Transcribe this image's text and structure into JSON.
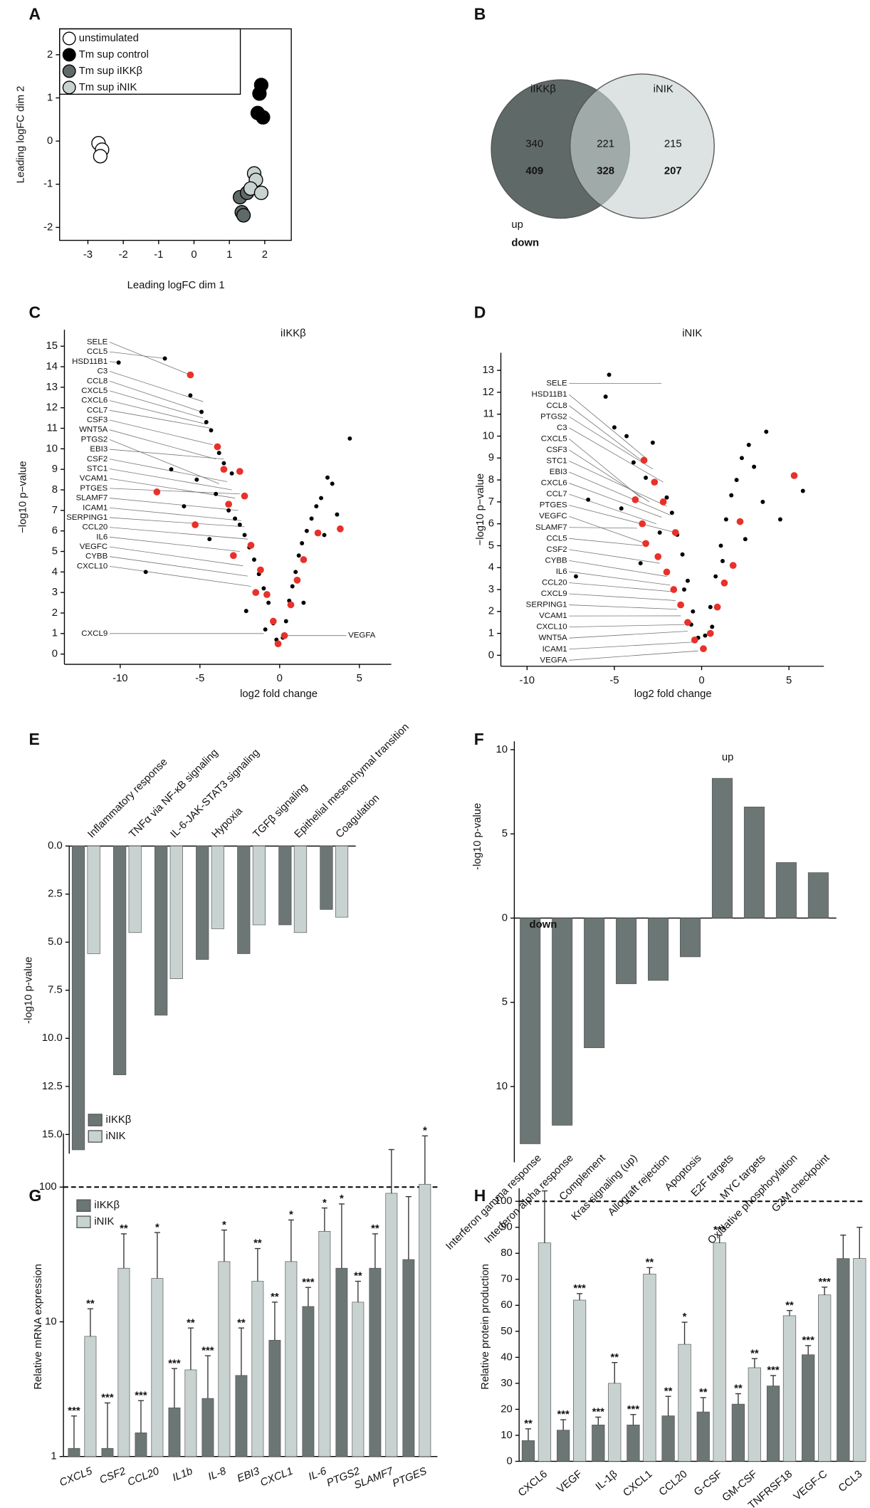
{
  "chart_data": [
    {
      "type": "scatter",
      "panel": "A",
      "xlabel": "Leading logFC dim 1",
      "ylabel": "Leading logFC dim 2",
      "xlim": [
        -3.8,
        2.75
      ],
      "ylim": [
        -2.3,
        2.6
      ],
      "xticks": [
        -3,
        -2,
        -1,
        0,
        1,
        2
      ],
      "yticks": [
        -2,
        -1,
        0,
        1,
        2
      ],
      "series": [
        {
          "name": "unstimulated",
          "color": "#ffffff",
          "x": [
            -2.7,
            -2.6,
            -2.65
          ],
          "values": [
            -0.05,
            -0.2,
            -0.35
          ]
        },
        {
          "name": "Tm sup control",
          "color": "#000000",
          "x": [
            1.9,
            1.85,
            1.8,
            1.95
          ],
          "values": [
            1.3,
            1.1,
            0.65,
            0.55
          ]
        },
        {
          "name": "Tm sup iIKKβ",
          "color": "#5f6968",
          "x": [
            1.3,
            1.5,
            1.35,
            1.4
          ],
          "values": [
            -1.3,
            -1.2,
            -1.65,
            -1.72
          ]
        },
        {
          "name": "Tm sup iNIK",
          "color": "#c8d2d0",
          "x": [
            1.7,
            1.75,
            1.6,
            1.9
          ],
          "values": [
            -0.75,
            -0.9,
            -1.1,
            -1.2
          ]
        }
      ]
    },
    {
      "type": "venn",
      "panel": "B",
      "sets": [
        "iIKKβ",
        "iNIK"
      ],
      "up": [
        340,
        221,
        215
      ],
      "down": [
        409,
        328,
        207
      ],
      "legend": [
        "up",
        "down"
      ],
      "colors": [
        "#5f6968",
        "#c8d2d0"
      ]
    },
    {
      "type": "scatter",
      "panel": "C",
      "title": "iIKKβ",
      "xlabel": "log2 fold change",
      "ylabel": "−log10 p−value",
      "xlim": [
        -13.5,
        7
      ],
      "ylim": [
        -0.5,
        15.8
      ],
      "xticks": [
        -10,
        -5,
        0,
        5
      ],
      "yticks": [
        0,
        1,
        2,
        3,
        4,
        5,
        6,
        7,
        8,
        9,
        10,
        11,
        12,
        13,
        14,
        15
      ],
      "series": [
        {
          "color": "#000000",
          "x": [
            -10.1,
            -7.2,
            -5.6,
            -4.9,
            -4.6,
            -4.3,
            -6.8,
            -3.8,
            -3.5,
            -3.0,
            -5.2,
            -4.0,
            -6.0,
            -3.2,
            -2.8,
            -2.5,
            -2.2,
            -4.4,
            -1.9,
            -1.6,
            -1.3,
            -1.0,
            -0.7,
            -0.4,
            -0.2,
            0.2,
            0.4,
            0.6,
            0.8,
            1.0,
            1.2,
            1.4,
            1.7,
            2.0,
            2.3,
            2.6,
            3.0,
            3.3,
            3.6,
            4.4,
            2.8,
            1.5,
            -8.4,
            -2.1,
            -0.9
          ],
          "values": [
            14.2,
            14.4,
            12.6,
            11.8,
            11.3,
            10.9,
            9.0,
            9.8,
            9.3,
            8.8,
            8.5,
            7.8,
            7.2,
            7.0,
            6.6,
            6.3,
            5.8,
            5.6,
            5.2,
            4.6,
            3.9,
            3.2,
            2.5,
            1.5,
            0.7,
            0.8,
            1.6,
            2.6,
            3.3,
            4.0,
            4.8,
            5.4,
            6.0,
            6.6,
            7.2,
            7.6,
            8.6,
            8.3,
            6.8,
            10.5,
            5.8,
            2.5,
            4.0,
            2.1,
            1.2
          ]
        },
        {
          "color": "#e8312a",
          "x": [
            -5.6,
            -7.7,
            -3.9,
            -3.5,
            -2.5,
            -2.2,
            -3.2,
            -5.3,
            -1.8,
            -1.2,
            -0.8,
            -0.4,
            -0.1,
            0.3,
            0.7,
            1.1,
            1.5,
            2.4,
            3.8,
            -2.9,
            -1.5
          ],
          "values": [
            13.6,
            7.9,
            10.1,
            9.0,
            8.9,
            7.7,
            7.3,
            6.3,
            5.3,
            4.1,
            2.9,
            1.6,
            0.5,
            0.9,
            2.4,
            3.6,
            4.6,
            5.9,
            6.1,
            4.8,
            3.0
          ]
        }
      ],
      "annotations": [
        {
          "text": "SELE",
          "x": -5.6,
          "y": 13.6
        },
        {
          "text": "CCL5",
          "x": -7.2,
          "y": 14.4
        },
        {
          "text": "HSD11B1",
          "x": -10.1,
          "y": 14.2
        },
        {
          "text": "C3",
          "x": -4.8,
          "y": 12.3
        },
        {
          "text": "CCL8",
          "x": -4.9,
          "y": 11.8
        },
        {
          "text": "CXCL5",
          "x": -4.8,
          "y": 11.5
        },
        {
          "text": "CXCL6",
          "x": -4.6,
          "y": 11.2
        },
        {
          "text": "CCL7",
          "x": -4.3,
          "y": 11.0
        },
        {
          "text": "CSF3",
          "x": -4.2,
          "y": 10.2
        },
        {
          "text": "WNT5A",
          "x": -4.0,
          "y": 9.5
        },
        {
          "text": "PTGS2",
          "x": -3.8,
          "y": 8.3
        },
        {
          "text": "EBI3",
          "x": -3.5,
          "y": 9.5
        },
        {
          "text": "CSF2",
          "x": -3.3,
          "y": 8.4
        },
        {
          "text": "STC1",
          "x": -3.0,
          "y": 8.0
        },
        {
          "text": "VCAM1",
          "x": -2.8,
          "y": 7.6
        },
        {
          "text": "PTGES",
          "x": -2.5,
          "y": 7.8
        },
        {
          "text": "SLAMF7",
          "x": -2.6,
          "y": 7.0
        },
        {
          "text": "ICAM1",
          "x": -2.4,
          "y": 6.5
        },
        {
          "text": "SERPING1",
          "x": -2.2,
          "y": 6.2
        },
        {
          "text": "CCL20",
          "x": -2.0,
          "y": 5.6
        },
        {
          "text": "IL6",
          "x": -2.5,
          "y": 5.0
        },
        {
          "text": "VEGFC",
          "x": -2.3,
          "y": 4.3
        },
        {
          "text": "CYBB",
          "x": -2.0,
          "y": 3.8
        },
        {
          "text": "CXCL10",
          "x": -1.8,
          "y": 3.3
        },
        {
          "text": "CXCL9",
          "x": -1.0,
          "y": 1.0
        },
        {
          "text": "VEGFA",
          "x": 0.5,
          "y": 0.9
        }
      ]
    },
    {
      "type": "scatter",
      "panel": "D",
      "title": "iNIK",
      "xlabel": "log2 fold change",
      "ylabel": "−log10 p−value",
      "xlim": [
        -11.5,
        7
      ],
      "ylim": [
        -0.5,
        13.8
      ],
      "xticks": [
        -10,
        -5,
        0,
        5
      ],
      "yticks": [
        0,
        1,
        2,
        3,
        4,
        5,
        6,
        7,
        8,
        9,
        10,
        11,
        12,
        13
      ],
      "series": [
        {
          "color": "#000000",
          "x": [
            -5.3,
            -5.5,
            -5.0,
            -4.3,
            -3.9,
            -2.8,
            -3.2,
            -6.5,
            -2.0,
            -1.7,
            -1.4,
            -1.1,
            -0.8,
            -0.5,
            -0.2,
            0.2,
            0.5,
            0.8,
            1.1,
            1.4,
            1.7,
            2.0,
            2.3,
            2.7,
            3.0,
            3.5,
            3.7,
            5.8,
            4.5,
            -4.6,
            -2.4,
            -3.5,
            -1.0,
            1.2,
            2.5,
            -7.2,
            -0.6,
            0.6
          ],
          "values": [
            12.8,
            11.8,
            10.4,
            10.0,
            8.8,
            9.7,
            8.1,
            7.1,
            7.2,
            6.5,
            5.5,
            4.6,
            3.4,
            2.0,
            0.8,
            0.9,
            2.2,
            3.6,
            5.0,
            6.2,
            7.3,
            8.0,
            9.0,
            9.6,
            8.6,
            7.0,
            10.2,
            7.5,
            6.2,
            6.7,
            5.6,
            4.2,
            3.0,
            4.3,
            5.3,
            3.6,
            1.4,
            1.3
          ]
        },
        {
          "color": "#e8312a",
          "x": [
            -3.3,
            -2.7,
            -2.2,
            -3.8,
            -3.4,
            -1.5,
            -3.2,
            -2.0,
            -1.6,
            -1.2,
            -0.8,
            -0.4,
            0.1,
            0.5,
            0.9,
            1.3,
            1.8,
            2.2,
            5.3,
            -2.5
          ],
          "values": [
            8.9,
            7.9,
            7.0,
            7.1,
            6.0,
            5.6,
            5.1,
            3.8,
            3.0,
            2.3,
            1.5,
            0.7,
            0.3,
            1.0,
            2.2,
            3.3,
            4.1,
            6.1,
            8.2,
            4.5
          ]
        }
      ],
      "annotations": [
        {
          "text": "SELE",
          "x": -2.3,
          "y": 12.4
        },
        {
          "text": "HSD11B1",
          "x": -3.2,
          "y": 9.0
        },
        {
          "text": "CCL8",
          "x": -3.3,
          "y": 8.8
        },
        {
          "text": "PTGS2",
          "x": -2.8,
          "y": 8.5
        },
        {
          "text": "C3",
          "x": -2.2,
          "y": 7.9
        },
        {
          "text": "CXCL5",
          "x": -3.5,
          "y": 7.2
        },
        {
          "text": "CSF3",
          "x": -3.0,
          "y": 7.0
        },
        {
          "text": "STC1",
          "x": -2.0,
          "y": 6.8
        },
        {
          "text": "EBI3",
          "x": -1.8,
          "y": 6.4
        },
        {
          "text": "CXCL6",
          "x": -2.3,
          "y": 6.3
        },
        {
          "text": "CCL7",
          "x": -2.6,
          "y": 6.0
        },
        {
          "text": "PTGES",
          "x": -1.5,
          "y": 5.6
        },
        {
          "text": "VEGFC",
          "x": -3.2,
          "y": 5.1
        },
        {
          "text": "SLAMF7",
          "x": -3.7,
          "y": 5.8
        },
        {
          "text": "CCL5",
          "x": -3.4,
          "y": 5.0
        },
        {
          "text": "CSF2",
          "x": -2.4,
          "y": 4.2
        },
        {
          "text": "CYBB",
          "x": -2.0,
          "y": 3.6
        },
        {
          "text": "IL6",
          "x": -1.8,
          "y": 3.2
        },
        {
          "text": "CCL20",
          "x": -1.6,
          "y": 2.9
        },
        {
          "text": "CXCL9",
          "x": -1.5,
          "y": 2.5
        },
        {
          "text": "SERPING1",
          "x": -1.4,
          "y": 2.1
        },
        {
          "text": "VCAM1",
          "x": -1.2,
          "y": 1.8
        },
        {
          "text": "CXCL10",
          "x": -1.0,
          "y": 1.4
        },
        {
          "text": "WNT5A",
          "x": -0.8,
          "y": 1.1
        },
        {
          "text": "ICAM1",
          "x": -0.5,
          "y": 0.6
        },
        {
          "text": "VEGFA",
          "x": -0.2,
          "y": 0.2
        }
      ]
    },
    {
      "type": "bar",
      "panel": "E",
      "ylabel": "-log10 p-value",
      "inverted": true,
      "categories": [
        "Inflammatory response",
        "TNFα via NF-κB signaling",
        "IL-6-JAK-STAT3 signaling",
        "Hypoxia",
        "TGFβ signaling",
        "Epithelial mesenchymal transition",
        "Coagulation"
      ],
      "ylim": [
        0,
        16
      ],
      "yticks": [
        {
          "value": 0,
          "label": "0.0"
        },
        2.5,
        {
          "value": 5,
          "label": "5.0"
        },
        7.5,
        {
          "value": 10,
          "label": "10.0"
        },
        12.5,
        {
          "value": 15,
          "label": "15.0"
        }
      ],
      "series": [
        {
          "name": "iIKKβ",
          "color": "#6b7675",
          "values": [
            15.8,
            11.9,
            8.8,
            5.9,
            5.6,
            4.1,
            3.3
          ]
        },
        {
          "name": "iNIK",
          "color": "#c8d3d1",
          "values": [
            5.6,
            4.5,
            6.9,
            4.3,
            4.1,
            4.5,
            3.7
          ]
        }
      ]
    },
    {
      "type": "bar",
      "panel": "F",
      "ylabel": "-log10 p-value",
      "categories": [
        "Interferon gamma response",
        "Interferon alpha response",
        "Complement",
        "Kras signaling (up)",
        "Allograft rejection",
        "Apoptosis",
        "E2F targets",
        "MYC targets",
        "Oxidative phosphorylation",
        "G2M checkpoint"
      ],
      "values": [
        -13.4,
        -12.3,
        -7.7,
        -3.9,
        -3.7,
        -2.3,
        8.3,
        6.6,
        3.3,
        2.7
      ],
      "color": "#6b7675",
      "ylim": [
        -14.5,
        10.5
      ],
      "yticks": [
        {
          "value": -10,
          "label": "10"
        },
        {
          "value": -5,
          "label": "5"
        },
        0,
        5,
        10
      ],
      "annotations": [
        "up",
        "down"
      ]
    },
    {
      "type": "bar",
      "panel": "G",
      "ylabel": "Relative mRNA expression",
      "log_scale": true,
      "reference_line": 100,
      "categories": [
        "CXCL5",
        "CSF2",
        "CCL20",
        "IL1b",
        "IL-8",
        "EBI3",
        "CXCL1",
        "IL-6",
        "PTGS2",
        "SLAMF7",
        "PTGES"
      ],
      "ylim": [
        1,
        250
      ],
      "yticks": [
        1,
        10,
        100
      ],
      "series": [
        {
          "name": "iIKKβ",
          "color": "#6b7675",
          "values": [
            1.15,
            1.15,
            1.5,
            2.3,
            2.7,
            4.0,
            7.3,
            13,
            25,
            25,
            29
          ],
          "errors": [
            0.85,
            1.35,
            1.1,
            2.2,
            2.9,
            5,
            6.7,
            5,
            50,
            20,
            56
          ],
          "significance": [
            "***",
            "***",
            "***",
            "***",
            "***",
            "**",
            "**",
            "***",
            "*",
            "**",
            null
          ]
        },
        {
          "name": "iNIK",
          "color": "#c8d3d1",
          "values": [
            7.8,
            25,
            21,
            4.4,
            28,
            20,
            28,
            47,
            14,
            90,
            105
          ],
          "errors": [
            4.7,
            20,
            25,
            4.6,
            20,
            15,
            29,
            23,
            6,
            100,
            135
          ],
          "significance": [
            "**",
            "**",
            "*",
            "**",
            "*",
            "**",
            "*",
            "*",
            "**",
            null,
            "*"
          ]
        }
      ]
    },
    {
      "type": "bar",
      "panel": "H",
      "ylabel": "Relative protein production",
      "reference_line": 100,
      "categories": [
        "CXCL6",
        "VEGF",
        "IL-1β",
        "CXCL1",
        "CCL20",
        "G-CSF",
        "GM-CSF",
        "TNFRSF18",
        "VEGF-C",
        "CCL3"
      ],
      "ylim": [
        0,
        105
      ],
      "yticks": [
        0,
        10,
        20,
        30,
        40,
        50,
        60,
        70,
        80,
        90,
        100
      ],
      "series": [
        {
          "color": "#6b7675",
          "values": [
            8,
            12,
            14,
            14,
            17.5,
            19,
            22,
            29,
            41,
            78
          ],
          "errors": [
            4.5,
            4,
            3,
            4,
            7.5,
            5.5,
            4,
            4,
            3.5,
            9
          ],
          "significance": [
            "**",
            "***",
            "***",
            "***",
            "**",
            "**",
            "**",
            "***",
            "***",
            null
          ]
        },
        {
          "color": "#c8d3d1",
          "values": [
            84,
            62,
            30,
            72,
            45,
            84,
            36,
            56,
            64,
            78
          ],
          "errors": [
            20,
            2.5,
            8,
            2.5,
            8.5,
            3,
            3.5,
            2,
            3,
            12
          ],
          "significance": [
            null,
            "***",
            "**",
            "**",
            "*",
            "***",
            "**",
            "**",
            "***",
            null
          ]
        }
      ]
    }
  ]
}
